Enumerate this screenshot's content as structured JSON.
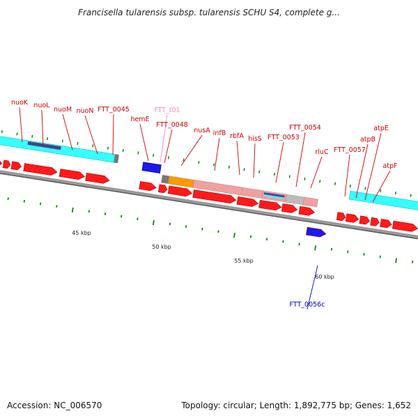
{
  "title": "Francisella tularensis subsp. tularensis SCHU S4, complete g...",
  "footer": {
    "accession": "Accession: NC_006570",
    "summary": "Topology: circular; Length: 1,892,775 bp; Genes: 1,652"
  },
  "colors": {
    "cds_forward": "#ff1a1a",
    "cds_reverse": "#1a1aee",
    "feature_cyan": "#33ffff",
    "feature_pink": "#f0a0a0",
    "feature_orange": "#ff9900",
    "label_red": "#cc0000",
    "label_blue": "#0000cc",
    "label_pink": "#ff88cc",
    "tick_green": "#008800",
    "backbone": "#999999"
  },
  "scale_labels": [
    "45 kbp",
    "50 kbp",
    "55 kbp",
    "60 kbp"
  ],
  "genes": [
    {
      "name": "nuoK",
      "color": "red"
    },
    {
      "name": "nuoL",
      "color": "red"
    },
    {
      "name": "nuoM",
      "color": "red"
    },
    {
      "name": "nuoN",
      "color": "red"
    },
    {
      "name": "FTT_0045",
      "color": "red"
    },
    {
      "name": "FTT_t01",
      "color": "pink"
    },
    {
      "name": "hemE",
      "color": "red"
    },
    {
      "name": "FTT_0048",
      "color": "red"
    },
    {
      "name": "nusA",
      "color": "red"
    },
    {
      "name": "infB",
      "color": "red"
    },
    {
      "name": "rbfA",
      "color": "red"
    },
    {
      "name": "hisS",
      "color": "red"
    },
    {
      "name": "FTT_0053",
      "color": "red"
    },
    {
      "name": "FTT_0054",
      "color": "red"
    },
    {
      "name": "rluC",
      "color": "red"
    },
    {
      "name": "FTT_0057",
      "color": "red"
    },
    {
      "name": "atpB",
      "color": "red"
    },
    {
      "name": "atpE",
      "color": "red"
    },
    {
      "name": "atpF",
      "color": "red"
    },
    {
      "name": "FTT_0056c",
      "color": "blue"
    }
  ]
}
